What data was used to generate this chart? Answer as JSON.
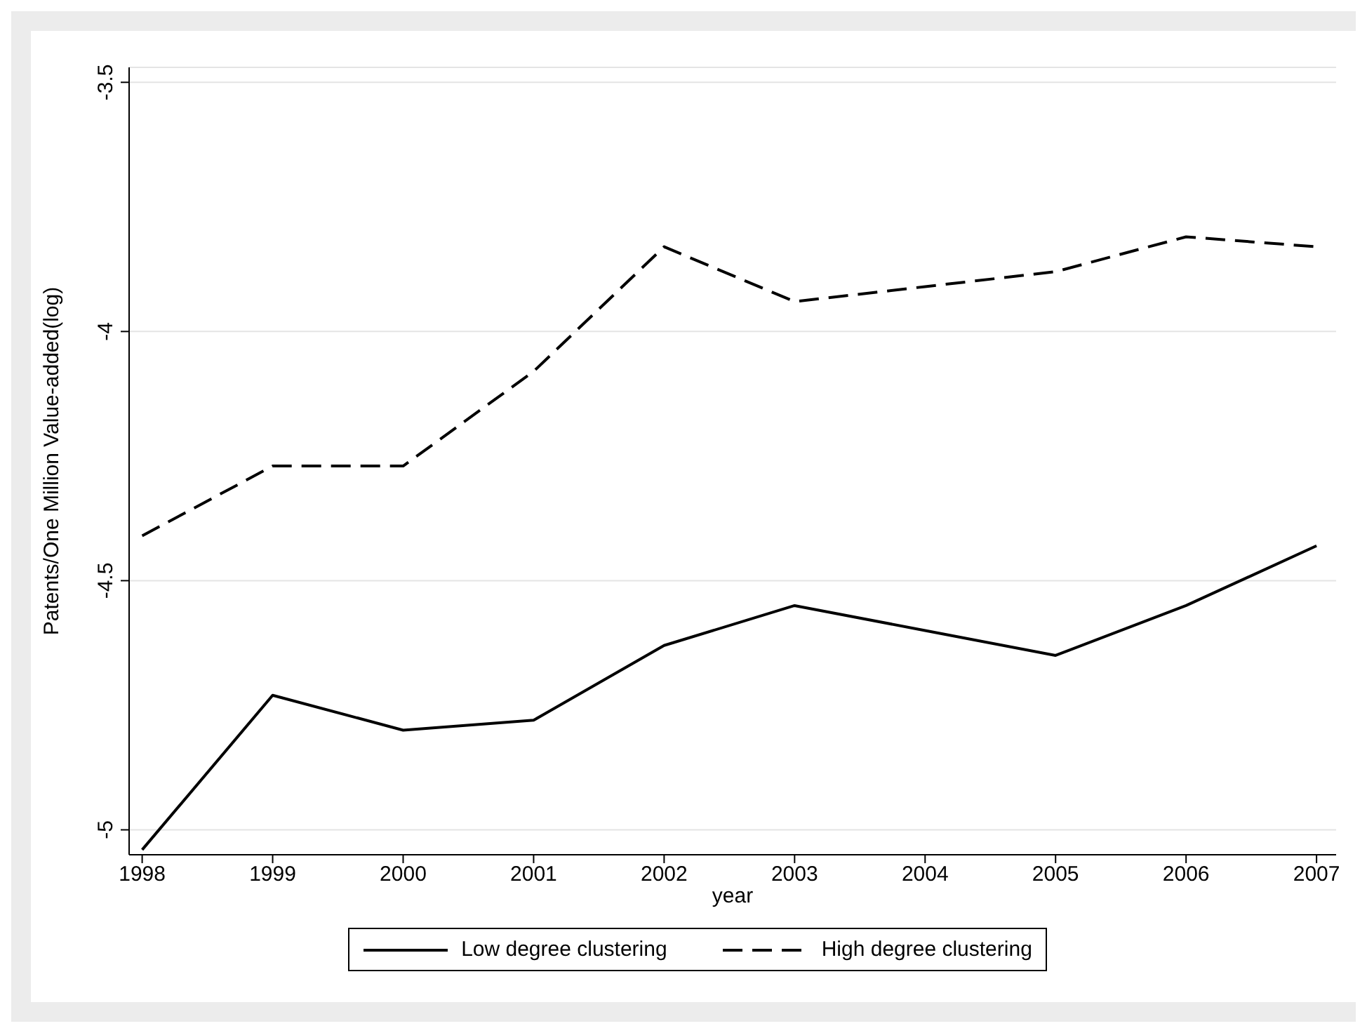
{
  "chart_data": {
    "type": "line",
    "xlabel": "year",
    "ylabel": "Patents/One Million Value-added(log)",
    "x": [
      1998,
      1999,
      2000,
      2001,
      2002,
      2003,
      2004,
      2005,
      2006,
      2007
    ],
    "xlim": [
      1997.9,
      2007.15
    ],
    "xticks": [
      1998,
      1999,
      2000,
      2001,
      2002,
      2003,
      2004,
      2005,
      2006,
      2007
    ],
    "ylim": [
      -5.05,
      -3.47
    ],
    "yticks": [
      -5,
      -4.5,
      -4,
      -3.5
    ],
    "grid": "y",
    "legend": "bottom",
    "marker": "none",
    "series": [
      {
        "name": "Low degree clustering",
        "color": "#000000",
        "line_style": "solid",
        "values": [
          -5.04,
          -4.73,
          -4.8,
          -4.78,
          -4.63,
          -4.55,
          -4.6,
          -4.65,
          -4.55,
          -4.43
        ]
      },
      {
        "name": "High degree clustering",
        "color": "#000000",
        "line_style": "dashed",
        "values": [
          -4.41,
          -4.27,
          -4.27,
          -4.08,
          -3.83,
          -3.94,
          -3.91,
          -3.88,
          -3.81,
          -3.83
        ]
      }
    ]
  }
}
